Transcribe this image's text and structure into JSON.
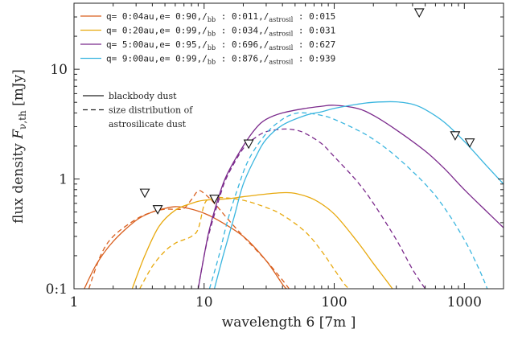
{
  "chart_data": {
    "type": "line",
    "xlabel": "wavelength 6 [7m ]",
    "ylabel_parts": [
      "flux density ",
      "F",
      "ν,th",
      " [mJy]"
    ],
    "x_scale": "log",
    "y_scale": "log",
    "xlim": [
      1,
      2000
    ],
    "ylim": [
      0.1,
      40
    ],
    "x_ticks": [
      {
        "value": 1,
        "label": "1"
      },
      {
        "value": 10,
        "label": "10"
      },
      {
        "value": 100,
        "label": "100"
      },
      {
        "value": 1000,
        "label": "1000"
      }
    ],
    "y_ticks": [
      {
        "value": 0.1,
        "label": "0:1"
      },
      {
        "value": 1,
        "label": "1"
      },
      {
        "value": 10,
        "label": "10"
      }
    ],
    "grid": false,
    "legend_placement": "top-left",
    "series": [
      {
        "name": "q= 0:04au,e= 0:90,/bb : 0:011,/astrosil : 0:015",
        "legend": {
          "q": "q= 0:04au,",
          "e": "e= 0:90,",
          "bb_val": " : 0:011,",
          "as_val": " : 0:015"
        },
        "color": "#d95f1e",
        "blackbody": [
          [
            1.2,
            0.1
          ],
          [
            1.5,
            0.17
          ],
          [
            2,
            0.27
          ],
          [
            3,
            0.42
          ],
          [
            4,
            0.5
          ],
          [
            5,
            0.54
          ],
          [
            6,
            0.56
          ],
          [
            7,
            0.55
          ],
          [
            9,
            0.51
          ],
          [
            12,
            0.44
          ],
          [
            20,
            0.3
          ],
          [
            30,
            0.18
          ],
          [
            40,
            0.11
          ],
          [
            43,
            0.1
          ]
        ],
        "astrosil": [
          [
            1.3,
            0.1
          ],
          [
            1.6,
            0.2
          ],
          [
            2,
            0.3
          ],
          [
            3,
            0.43
          ],
          [
            4,
            0.5
          ],
          [
            5,
            0.53
          ],
          [
            6,
            0.53
          ],
          [
            7,
            0.54
          ],
          [
            8,
            0.65
          ],
          [
            9,
            0.78
          ],
          [
            10,
            0.74
          ],
          [
            12,
            0.6
          ],
          [
            15,
            0.44
          ],
          [
            20,
            0.3
          ],
          [
            30,
            0.18
          ],
          [
            40,
            0.12
          ],
          [
            45,
            0.1
          ]
        ]
      },
      {
        "name": "q= 0:20au,e= 0:99,/bb : 0:034,/astrosil : 0:031",
        "legend": {
          "q": "q= 0:20au,",
          "e": "e= 0:99,",
          "bb_val": " : 0:034,",
          "as_val": " : 0:031"
        },
        "color": "#e8a90e",
        "blackbody": [
          [
            2.8,
            0.1
          ],
          [
            3.5,
            0.2
          ],
          [
            4.5,
            0.37
          ],
          [
            6,
            0.52
          ],
          [
            8,
            0.6
          ],
          [
            10,
            0.64
          ],
          [
            15,
            0.66
          ],
          [
            20,
            0.69
          ],
          [
            30,
            0.73
          ],
          [
            40,
            0.75
          ],
          [
            50,
            0.74
          ],
          [
            70,
            0.65
          ],
          [
            100,
            0.48
          ],
          [
            150,
            0.27
          ],
          [
            200,
            0.17
          ],
          [
            250,
            0.12
          ],
          [
            280,
            0.1
          ]
        ],
        "astrosil": [
          [
            3.2,
            0.1
          ],
          [
            4,
            0.16
          ],
          [
            5,
            0.22
          ],
          [
            6,
            0.26
          ],
          [
            7,
            0.28
          ],
          [
            8,
            0.3
          ],
          [
            9,
            0.35
          ],
          [
            10,
            0.58
          ],
          [
            11,
            0.66
          ],
          [
            13,
            0.68
          ],
          [
            20,
            0.64
          ],
          [
            30,
            0.55
          ],
          [
            40,
            0.47
          ],
          [
            60,
            0.33
          ],
          [
            80,
            0.22
          ],
          [
            100,
            0.15
          ],
          [
            120,
            0.11
          ],
          [
            130,
            0.1
          ]
        ]
      },
      {
        "name": "q= 5:00au,e= 0:95,/bb : 0:696,/astrosil : 0:627",
        "legend": {
          "q": "q= 5:00au,",
          "e": "e= 0:95,",
          "bb_val": " : 0:696,",
          "as_val": " : 0:627"
        },
        "color": "#7b2a8c",
        "blackbody": [
          [
            9,
            0.1
          ],
          [
            10,
            0.2
          ],
          [
            11,
            0.35
          ],
          [
            13,
            0.7
          ],
          [
            15,
            1.1
          ],
          [
            20,
            2.0
          ],
          [
            25,
            2.9
          ],
          [
            30,
            3.5
          ],
          [
            40,
            4.0
          ],
          [
            60,
            4.4
          ],
          [
            80,
            4.6
          ],
          [
            100,
            4.7
          ],
          [
            150,
            4.4
          ],
          [
            200,
            3.8
          ],
          [
            300,
            2.8
          ],
          [
            500,
            1.8
          ],
          [
            700,
            1.25
          ],
          [
            1000,
            0.8
          ],
          [
            1500,
            0.5
          ],
          [
            2000,
            0.36
          ]
        ],
        "astrosil": [
          [
            9,
            0.1
          ],
          [
            10,
            0.2
          ],
          [
            11,
            0.33
          ],
          [
            13,
            0.65
          ],
          [
            15,
            1.05
          ],
          [
            20,
            1.9
          ],
          [
            25,
            2.4
          ],
          [
            30,
            2.7
          ],
          [
            40,
            2.85
          ],
          [
            50,
            2.8
          ],
          [
            60,
            2.6
          ],
          [
            80,
            2.1
          ],
          [
            100,
            1.6
          ],
          [
            150,
            0.95
          ],
          [
            200,
            0.6
          ],
          [
            300,
            0.28
          ],
          [
            400,
            0.15
          ],
          [
            500,
            0.1
          ]
        ]
      },
      {
        "name": "q= 9:00au,e= 0:99,/bb : 0:876,/astrosil : 0:939",
        "legend": {
          "q": "q= 9:00au,",
          "e": "e= 0:99,",
          "bb_val": " : 0:876,",
          "as_val": " : 0:939"
        },
        "color": "#39b5df",
        "blackbody": [
          [
            12,
            0.1
          ],
          [
            14,
            0.2
          ],
          [
            17,
            0.45
          ],
          [
            20,
            0.9
          ],
          [
            25,
            1.6
          ],
          [
            30,
            2.3
          ],
          [
            40,
            3.1
          ],
          [
            60,
            3.8
          ],
          [
            80,
            4.1
          ],
          [
            100,
            4.4
          ],
          [
            150,
            4.8
          ],
          [
            200,
            5.0
          ],
          [
            300,
            5.05
          ],
          [
            400,
            4.8
          ],
          [
            500,
            4.3
          ],
          [
            700,
            3.3
          ],
          [
            1000,
            2.2
          ],
          [
            1500,
            1.3
          ],
          [
            2000,
            0.9
          ]
        ],
        "astrosil": [
          [
            11,
            0.1
          ],
          [
            13,
            0.2
          ],
          [
            15,
            0.4
          ],
          [
            18,
            0.8
          ],
          [
            22,
            1.5
          ],
          [
            30,
            2.6
          ],
          [
            40,
            3.5
          ],
          [
            50,
            3.95
          ],
          [
            60,
            4.0
          ],
          [
            80,
            3.8
          ],
          [
            100,
            3.5
          ],
          [
            150,
            2.8
          ],
          [
            200,
            2.3
          ],
          [
            300,
            1.6
          ],
          [
            500,
            0.9
          ],
          [
            700,
            0.55
          ],
          [
            1000,
            0.28
          ],
          [
            1300,
            0.15
          ],
          [
            1500,
            0.1
          ]
        ]
      }
    ],
    "style_legend": [
      {
        "style": "solid",
        "label": "blackbody dust"
      },
      {
        "style": "dashed",
        "label": "size distribution of"
      },
      {
        "style": "none",
        "label": "astrosilicate dust"
      }
    ],
    "upper_limits": [
      [
        3.5,
        0.75
      ],
      [
        4.4,
        0.53
      ],
      [
        12,
        0.66
      ],
      [
        22,
        2.1
      ],
      [
        450,
        33
      ],
      [
        850,
        2.5
      ],
      [
        1100,
        2.15
      ]
    ]
  }
}
